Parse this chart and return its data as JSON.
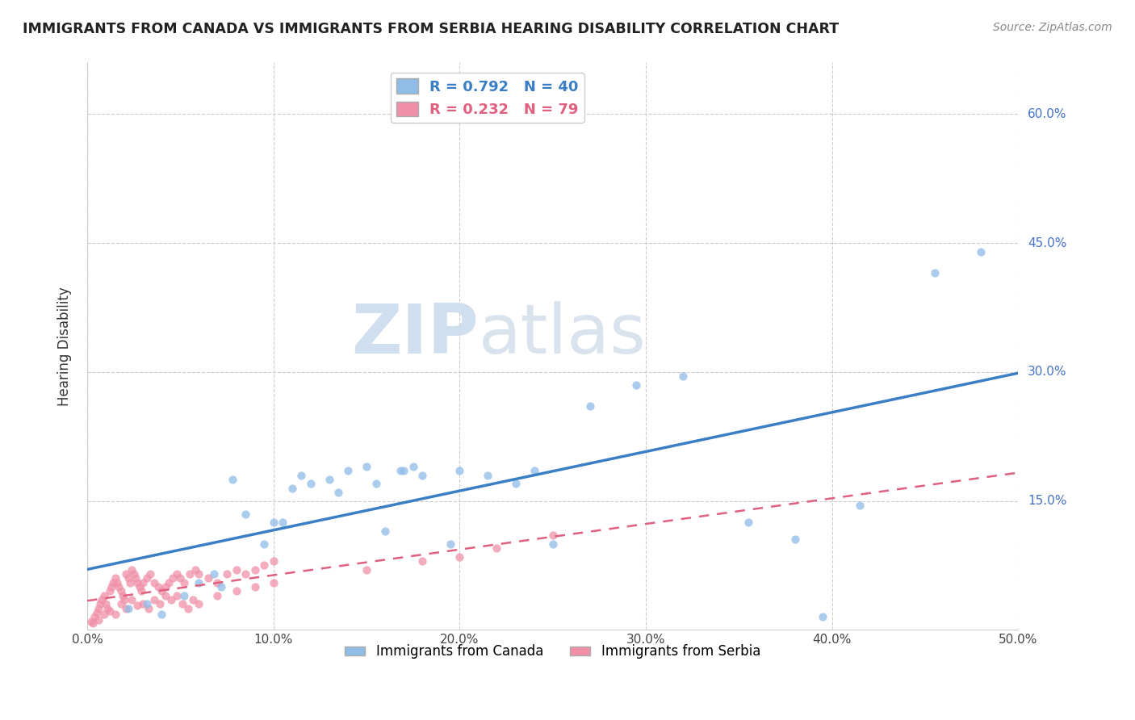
{
  "title": "IMMIGRANTS FROM CANADA VS IMMIGRANTS FROM SERBIA HEARING DISABILITY CORRELATION CHART",
  "source": "Source: ZipAtlas.com",
  "ylabel": "Hearing Disability",
  "xmin": 0.0,
  "xmax": 0.5,
  "ymin": 0.0,
  "ymax": 0.66,
  "xticks": [
    0.0,
    0.1,
    0.2,
    0.3,
    0.4,
    0.5
  ],
  "xticklabels": [
    "0.0%",
    "10.0%",
    "20.0%",
    "30.0%",
    "40.0%",
    "50.0%"
  ],
  "yticks": [
    0.15,
    0.3,
    0.45,
    0.6
  ],
  "yticklabels": [
    "15.0%",
    "30.0%",
    "45.0%",
    "60.0%"
  ],
  "canada_R": 0.792,
  "canada_N": 40,
  "serbia_R": 0.232,
  "serbia_N": 79,
  "canada_color": "#90bce8",
  "serbia_color": "#f090a8",
  "canada_line_color": "#3a7ec6",
  "serbia_line_color": "#e06080",
  "tick_color": "#4472C4",
  "watermark_zip": "ZIP",
  "watermark_atlas": "atlas",
  "legend_label_canada": "Immigrants from Canada",
  "legend_label_serbia": "Immigrants from Serbia",
  "canada_x": [
    0.022,
    0.032,
    0.04,
    0.052,
    0.06,
    0.068,
    0.072,
    0.078,
    0.085,
    0.095,
    0.1,
    0.105,
    0.11,
    0.115,
    0.12,
    0.13,
    0.135,
    0.14,
    0.15,
    0.155,
    0.16,
    0.168,
    0.17,
    0.175,
    0.18,
    0.195,
    0.2,
    0.215,
    0.23,
    0.24,
    0.25,
    0.27,
    0.295,
    0.32,
    0.355,
    0.38,
    0.395,
    0.415,
    0.455,
    0.48
  ],
  "canada_y": [
    0.025,
    0.03,
    0.018,
    0.04,
    0.055,
    0.065,
    0.05,
    0.175,
    0.135,
    0.1,
    0.125,
    0.125,
    0.165,
    0.18,
    0.17,
    0.175,
    0.16,
    0.185,
    0.19,
    0.17,
    0.115,
    0.185,
    0.185,
    0.19,
    0.18,
    0.1,
    0.185,
    0.18,
    0.17,
    0.185,
    0.1,
    0.26,
    0.285,
    0.295,
    0.125,
    0.105,
    0.015,
    0.145,
    0.415,
    0.44
  ],
  "serbia_x": [
    0.002,
    0.004,
    0.005,
    0.006,
    0.007,
    0.008,
    0.009,
    0.01,
    0.011,
    0.012,
    0.013,
    0.014,
    0.015,
    0.016,
    0.017,
    0.018,
    0.019,
    0.02,
    0.021,
    0.022,
    0.023,
    0.024,
    0.025,
    0.026,
    0.027,
    0.028,
    0.029,
    0.03,
    0.032,
    0.034,
    0.036,
    0.038,
    0.04,
    0.042,
    0.044,
    0.046,
    0.048,
    0.05,
    0.052,
    0.055,
    0.058,
    0.06,
    0.065,
    0.07,
    0.075,
    0.08,
    0.085,
    0.09,
    0.095,
    0.1,
    0.003,
    0.006,
    0.009,
    0.012,
    0.015,
    0.018,
    0.021,
    0.024,
    0.027,
    0.03,
    0.033,
    0.036,
    0.039,
    0.042,
    0.045,
    0.048,
    0.051,
    0.054,
    0.057,
    0.06,
    0.07,
    0.08,
    0.09,
    0.1,
    0.15,
    0.18,
    0.2,
    0.22,
    0.25
  ],
  "serbia_y": [
    0.01,
    0.015,
    0.02,
    0.025,
    0.03,
    0.035,
    0.04,
    0.03,
    0.025,
    0.045,
    0.05,
    0.055,
    0.06,
    0.055,
    0.05,
    0.045,
    0.04,
    0.035,
    0.065,
    0.06,
    0.055,
    0.07,
    0.065,
    0.06,
    0.055,
    0.05,
    0.045,
    0.055,
    0.06,
    0.065,
    0.055,
    0.05,
    0.045,
    0.05,
    0.055,
    0.06,
    0.065,
    0.06,
    0.055,
    0.065,
    0.07,
    0.065,
    0.06,
    0.055,
    0.065,
    0.07,
    0.065,
    0.07,
    0.075,
    0.08,
    0.008,
    0.012,
    0.018,
    0.022,
    0.018,
    0.03,
    0.025,
    0.035,
    0.028,
    0.03,
    0.025,
    0.035,
    0.03,
    0.04,
    0.035,
    0.04,
    0.03,
    0.025,
    0.035,
    0.03,
    0.04,
    0.045,
    0.05,
    0.055,
    0.07,
    0.08,
    0.085,
    0.095,
    0.11
  ]
}
